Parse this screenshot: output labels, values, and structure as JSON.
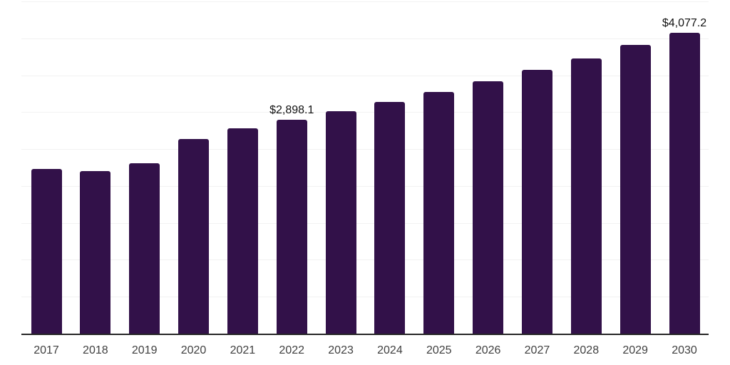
{
  "chart_data": {
    "type": "bar",
    "title": "",
    "categories": [
      "2017",
      "2018",
      "2019",
      "2020",
      "2021",
      "2022",
      "2023",
      "2024",
      "2025",
      "2026",
      "2027",
      "2028",
      "2029",
      "2030"
    ],
    "values": [
      2234,
      2202,
      2308,
      2636,
      2781,
      2898.1,
      3013,
      3141,
      3270,
      3418,
      3570,
      3727,
      3908,
      4077.2
    ],
    "annotations": [
      {
        "category": "2022",
        "text": "$2,898.1"
      },
      {
        "category": "2030",
        "text": "$4,077.2"
      }
    ],
    "xlabel": "",
    "ylabel": "",
    "ylim": [
      0,
      4500
    ],
    "gridline_interval": 500,
    "grid": true,
    "y_axis_labels_visible": false,
    "legend_visible": false,
    "colors": {
      "bar": "#321149",
      "gridline": "#f2f2f2",
      "axis_line": "#262626",
      "tick_label": "#404040",
      "value_label": "#111111",
      "background": "#ffffff"
    }
  }
}
